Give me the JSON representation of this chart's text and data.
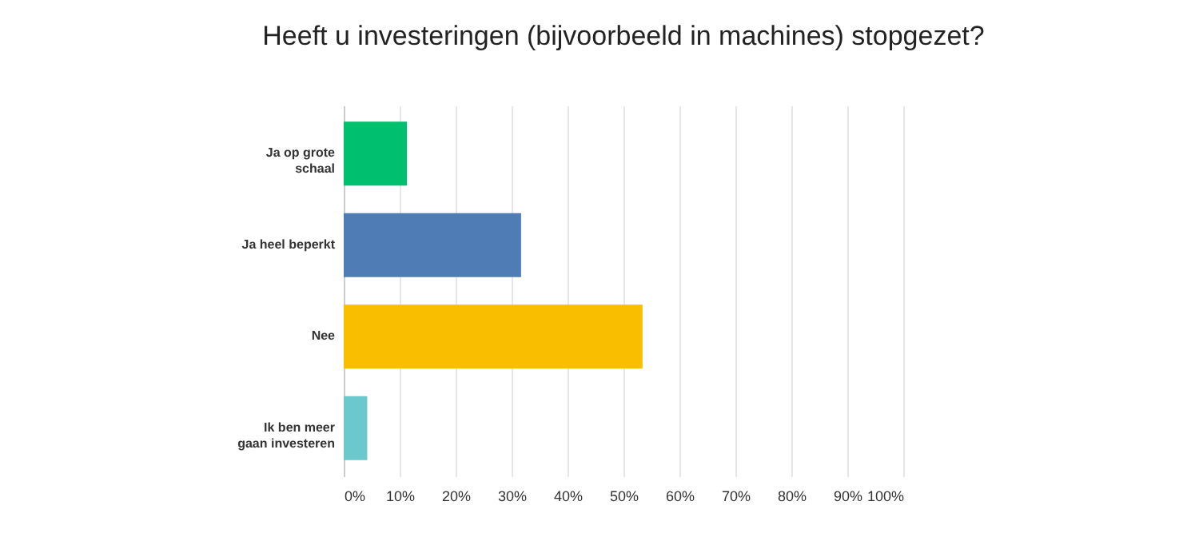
{
  "chart_data": {
    "type": "bar",
    "orientation": "horizontal",
    "title": "Heeft u investeringen (bijvoorbeeld in machines) stopgezet?",
    "categories": [
      "Ja op grote schaal",
      "Ja heel beperkt",
      "Nee",
      "Ik ben meer gaan investeren"
    ],
    "values": [
      11.3,
      31.7,
      53.4,
      4.2
    ],
    "colors": [
      "#00bf6f",
      "#507cb6",
      "#f9be00",
      "#6bc8cd"
    ],
    "xlim": [
      0,
      100
    ],
    "xticks": [
      {
        "value": 0,
        "label": "0%"
      },
      {
        "value": 10,
        "label": "10%"
      },
      {
        "value": 20,
        "label": "20%"
      },
      {
        "value": 30,
        "label": "30%"
      },
      {
        "value": 40,
        "label": "40%"
      },
      {
        "value": 50,
        "label": "50%"
      },
      {
        "value": 60,
        "label": "60%"
      },
      {
        "value": 70,
        "label": "70%"
      },
      {
        "value": 80,
        "label": "80%"
      },
      {
        "value": 90,
        "label": "90%"
      },
      {
        "value": 100,
        "label": "100%"
      }
    ],
    "grid": "x"
  }
}
